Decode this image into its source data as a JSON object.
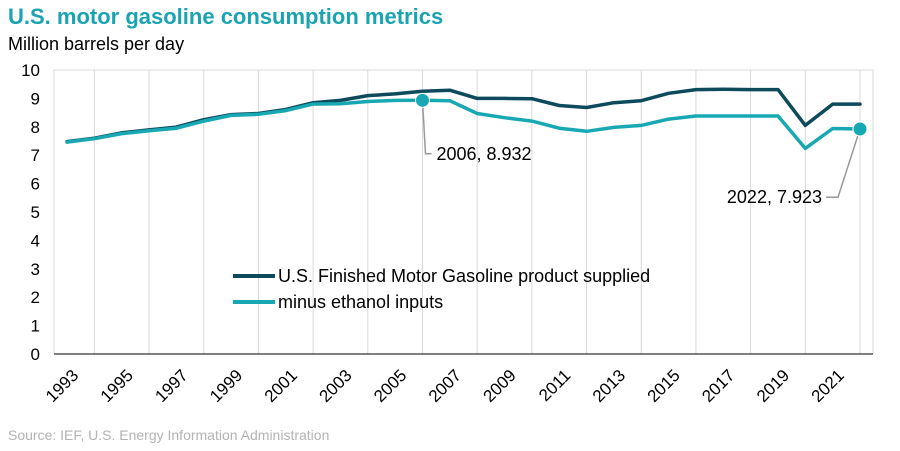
{
  "title": "U.S. motor gasoline consumption metrics",
  "units_label": "Million barrels per day",
  "source": "Source: IEF, U.S. Energy Information Administration",
  "colors": {
    "title": "#1aa3b0",
    "series_dark": "#0d4a5c",
    "series_light": "#18a8b3",
    "grid": "#d9d9d9",
    "annotation_line": "#999999"
  },
  "chart_data": {
    "type": "line",
    "ylim": [
      0,
      10
    ],
    "yticks": [
      "0",
      "1",
      "2",
      "3",
      "4",
      "5",
      "6",
      "7",
      "8",
      "9",
      "10"
    ],
    "x": [
      1993,
      1994,
      1995,
      1996,
      1997,
      1998,
      1999,
      2000,
      2001,
      2002,
      2003,
      2004,
      2005,
      2006,
      2007,
      2008,
      2009,
      2010,
      2011,
      2012,
      2013,
      2014,
      2015,
      2016,
      2017,
      2018,
      2019,
      2020,
      2021,
      2022
    ],
    "xtick_labels": [
      "1993",
      "1995",
      "1997",
      "1999",
      "2001",
      "2003",
      "2005",
      "2007",
      "2009",
      "2011",
      "2013",
      "2015",
      "2017",
      "2019",
      "2021"
    ],
    "series": [
      {
        "name": "U.S. Finished Motor Gasoline product supplied",
        "color_key": "series_dark",
        "values": [
          7.48,
          7.6,
          7.79,
          7.89,
          7.99,
          8.25,
          8.43,
          8.47,
          8.61,
          8.85,
          8.93,
          9.1,
          9.16,
          9.25,
          9.29,
          9.0,
          9.0,
          8.99,
          8.75,
          8.68,
          8.85,
          8.92,
          9.18,
          9.31,
          9.32,
          9.31,
          9.31,
          8.05,
          8.8,
          8.8
        ]
      },
      {
        "name": "minus ethanol inputs",
        "color_key": "series_light",
        "values": [
          7.46,
          7.58,
          7.76,
          7.86,
          7.95,
          8.2,
          8.4,
          8.44,
          8.57,
          8.8,
          8.81,
          8.89,
          8.93,
          8.932,
          8.92,
          8.47,
          8.32,
          8.2,
          7.95,
          7.84,
          7.98,
          8.05,
          8.27,
          8.38,
          8.38,
          8.38,
          8.38,
          7.24,
          7.94,
          7.923
        ]
      }
    ],
    "annotations": [
      {
        "text": "2006, 8.932",
        "x": 2006,
        "y": 8.932,
        "series": 1
      },
      {
        "text": "2022, 7.923",
        "x": 2022,
        "y": 7.923,
        "series": 1
      }
    ],
    "legend": "inside-bottom-center",
    "grid": "vertical gridlines"
  }
}
